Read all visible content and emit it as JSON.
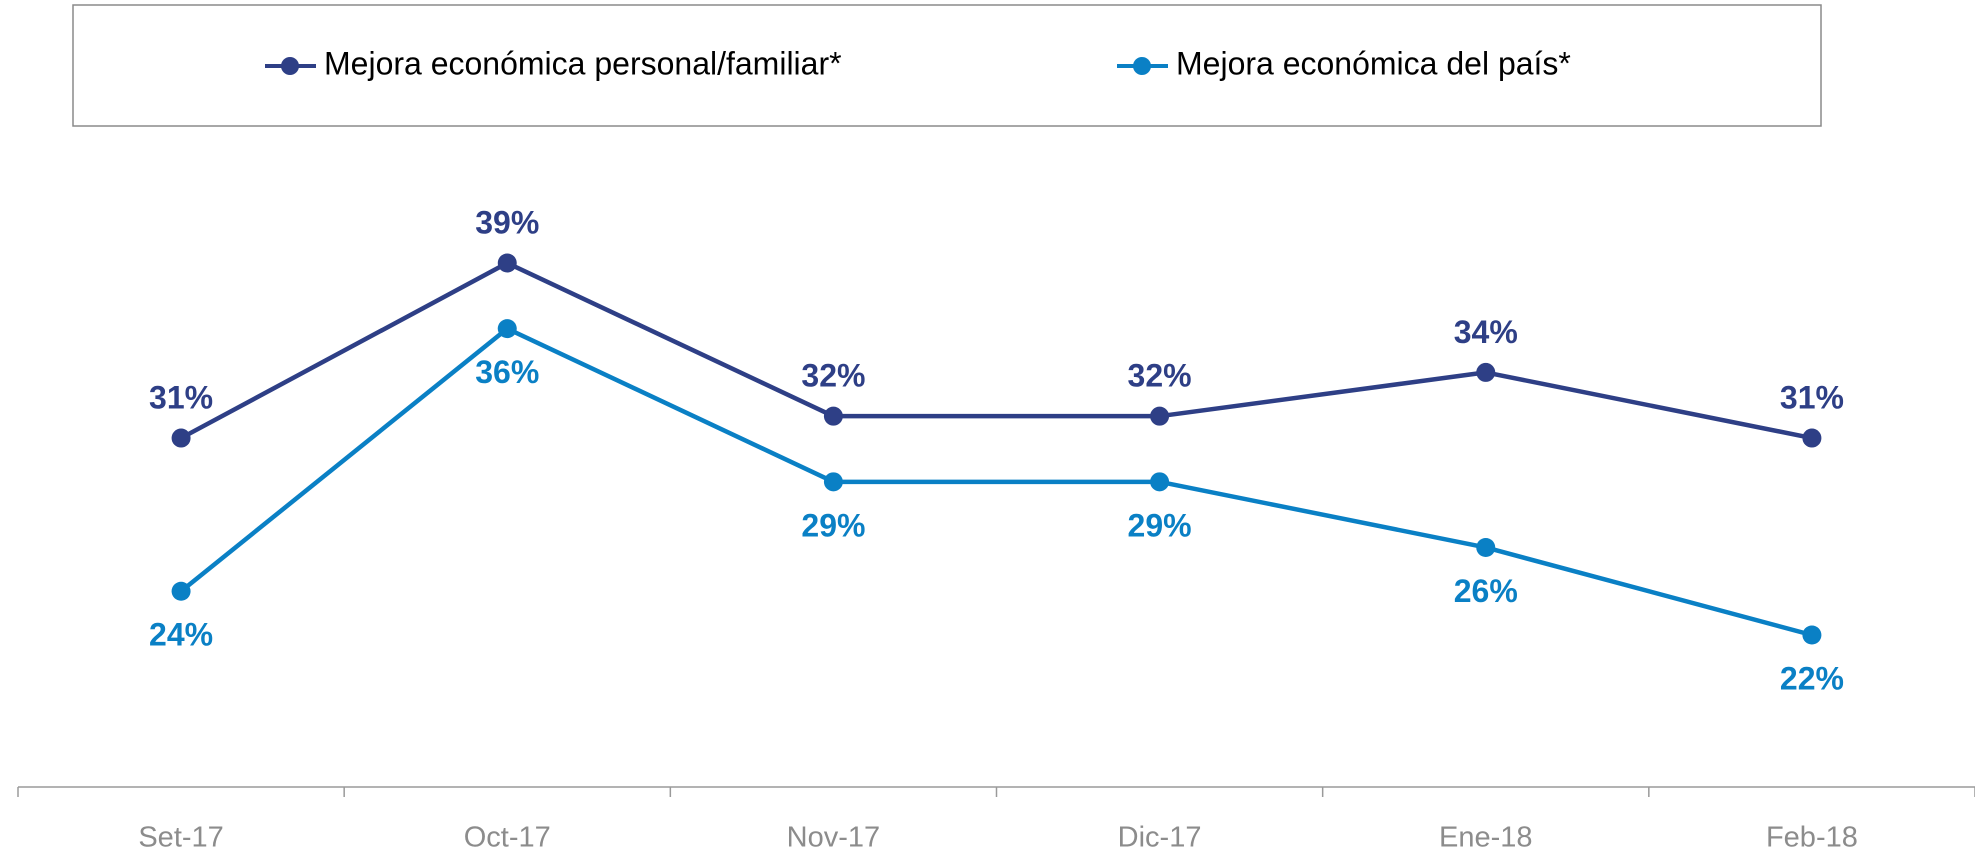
{
  "chart_data": {
    "type": "line",
    "categories": [
      "Set-17",
      "Oct-17",
      "Nov-17",
      "Dic-17",
      "Ene-18",
      "Feb-18"
    ],
    "series": [
      {
        "name": "Mejora económica personal/familiar*",
        "color": "#2e3f86",
        "values": [
          31,
          39,
          32,
          32,
          34,
          31
        ],
        "value_labels": [
          "31%",
          "39%",
          "32%",
          "32%",
          "34%",
          "31%"
        ]
      },
      {
        "name": "Mejora económica del país*",
        "color": "#0a80c5",
        "values": [
          24,
          36,
          29,
          29,
          26,
          22
        ],
        "value_labels": [
          "24%",
          "36%",
          "29%",
          "29%",
          "26%",
          "22%"
        ]
      }
    ],
    "legend": "top"
  }
}
